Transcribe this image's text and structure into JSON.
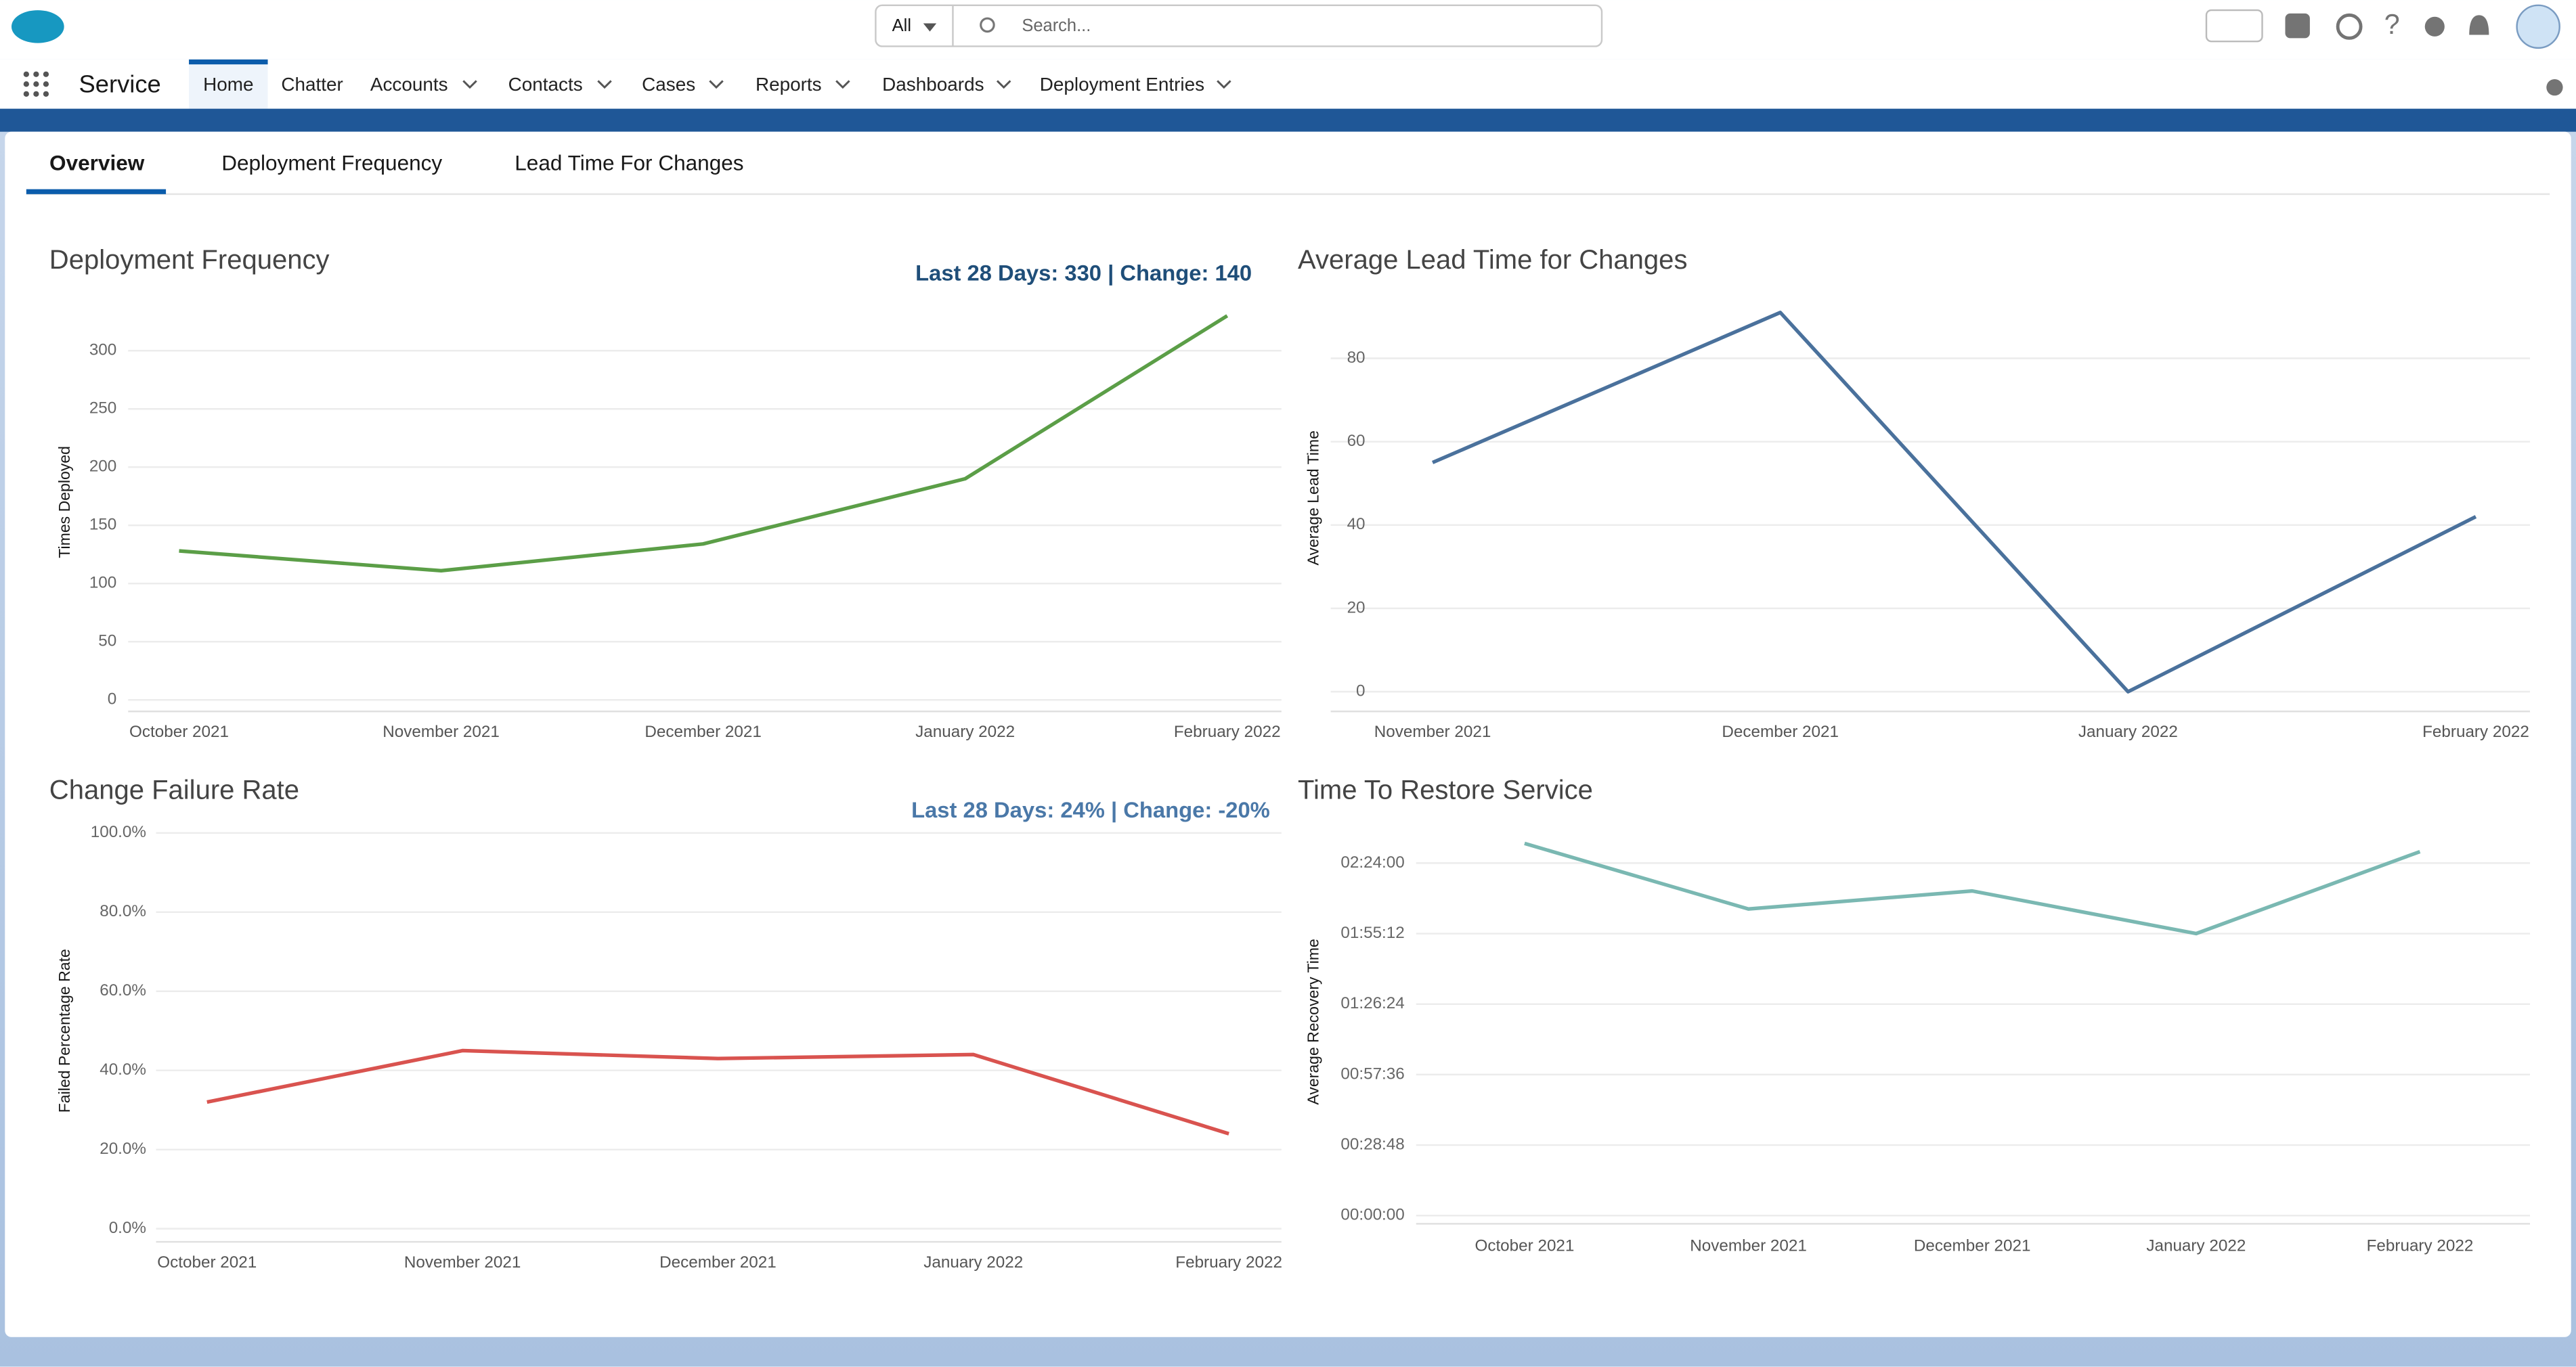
{
  "header": {
    "search_scope": "All",
    "search_placeholder": "Search..."
  },
  "nav": {
    "app_name": "Service",
    "items": [
      "Home",
      "Chatter",
      "Accounts",
      "Contacts",
      "Cases",
      "Reports",
      "Dashboards",
      "Deployment Entries"
    ]
  },
  "tabs": [
    "Overview",
    "Deployment Frequency",
    "Lead Time For Changes"
  ],
  "chart_data": [
    {
      "type": "line",
      "title": "Deployment Frequency",
      "summary": "Last 28 Days: 330 | Change: 140",
      "categories": [
        "October 2021",
        "November 2021",
        "December 2021",
        "January 2022",
        "February 2022"
      ],
      "values": [
        128,
        111,
        134,
        190,
        330
      ],
      "color": "#5b9e47",
      "y_label": "Times Deployed",
      "ylim": [
        0,
        340
      ],
      "yticks": [
        0,
        50,
        100,
        150,
        200,
        250,
        300
      ],
      "grid": true
    },
    {
      "type": "line",
      "title": "Average Lead Time for Changes",
      "categories": [
        "November 2021",
        "December 2021",
        "January 2022",
        "February 2022"
      ],
      "values": [
        55,
        91,
        0,
        42
      ],
      "color": "#4a719c",
      "y_label": "Average Lead Time",
      "ylim": [
        0,
        93
      ],
      "yticks": [
        0,
        20,
        40,
        60,
        80
      ],
      "grid": true
    },
    {
      "type": "line",
      "title": "Change Failure Rate",
      "summary": "Last 28 Days: 24% | Change: -20%",
      "categories": [
        "October 2021",
        "November 2021",
        "December 2021",
        "January 2022",
        "February 2022"
      ],
      "values": [
        32,
        45,
        43,
        44,
        24
      ],
      "color": "#d9534f",
      "y_label": "Failed Percentage Rate",
      "ylim": [
        0,
        100
      ],
      "yticks": [
        {
          "value": 0,
          "label": "0.0%"
        },
        {
          "value": 20,
          "label": "20.0%"
        },
        {
          "value": 40,
          "label": "40.0%"
        },
        {
          "value": 60,
          "label": "60.0%"
        },
        {
          "value": 80,
          "label": "80.0%"
        },
        {
          "value": 100,
          "label": "100.0%"
        }
      ],
      "grid": true
    },
    {
      "type": "line",
      "title": "Time To Restore Service",
      "categories": [
        "October 2021",
        "November 2021",
        "December 2021",
        "January 2022",
        "February 2022"
      ],
      "values": [
        9122,
        7515,
        7957,
        6912,
        8921
      ],
      "color": "#7ab8b2",
      "y_label": "Average Recovery Time",
      "ylim": [
        0,
        9500
      ],
      "yticks": [
        {
          "value": 0,
          "label": "00:00:00"
        },
        {
          "value": 1728,
          "label": "00:28:48"
        },
        {
          "value": 3456,
          "label": "00:57:36"
        },
        {
          "value": 5184,
          "label": "01:26:24"
        },
        {
          "value": 6912,
          "label": "01:55:12"
        },
        {
          "value": 8640,
          "label": "02:24:00"
        }
      ],
      "grid": true
    }
  ]
}
